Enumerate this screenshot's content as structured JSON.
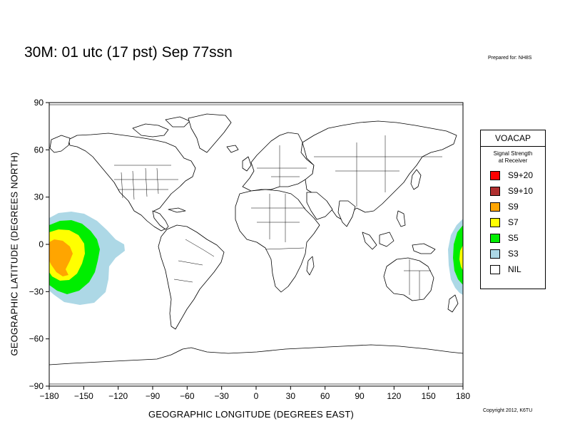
{
  "title": "30M:  01 utc (17 pst) Sep 77ssn",
  "prepared_for": "Prepared for: NH8S",
  "copyright": "Copyright 2012, K6TU",
  "axes": {
    "xlabel": "GEOGRAPHIC LONGITUDE (DEGREES EAST)",
    "ylabel": "GEOGRAPHIC LATITUDE (DEGREES NORTH)",
    "xlim": [
      -180,
      180
    ],
    "ylim": [
      -90,
      90
    ],
    "xticks": [
      "−180",
      "−150",
      "−120",
      "−90",
      "−60",
      "−30",
      "0",
      "30",
      "60",
      "90",
      "120",
      "150",
      "180"
    ],
    "yticks": [
      "90",
      "60",
      "30",
      "0",
      "−30",
      "−60",
      "−90"
    ]
  },
  "legend": {
    "title": "VOACAP",
    "subtitle_line1": "Signal Strength",
    "subtitle_line2": "at Receiver",
    "items": [
      {
        "label": "S9+20",
        "color": "#ff0000"
      },
      {
        "label": "S9+10",
        "color": "#b03030"
      },
      {
        "label": "S9",
        "color": "#ffa500"
      },
      {
        "label": "S7",
        "color": "#ffff00"
      },
      {
        "label": "S5",
        "color": "#00ee00"
      },
      {
        "label": "S3",
        "color": "#add8e6"
      },
      {
        "label": "NIL",
        "color": "#ffffff"
      }
    ]
  }
}
